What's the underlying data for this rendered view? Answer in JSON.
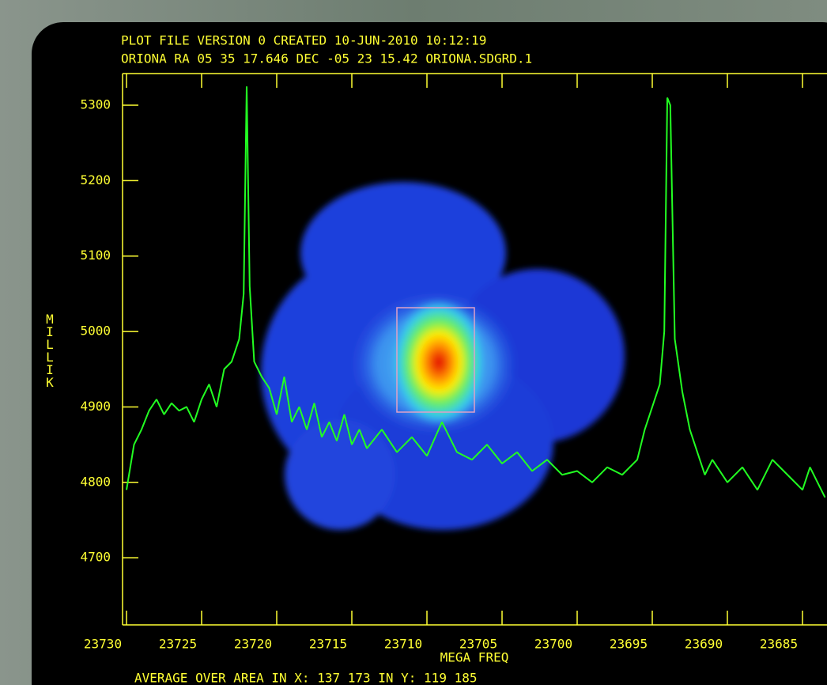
{
  "chart_data": {
    "type": "line",
    "title": "PLOT FILE VERSION 0  CREATED 10-JUN-2010 10:12:19",
    "subtitle": "ORIONA  RA 05 35 17.646  DEC -05 23 15.42  ORIONA.SDGRD.1",
    "xlabel": "MEGA FREQ",
    "ylabel": "MILLIK",
    "annotation": "AVERAGE OVER AREA IN X:  137  173   IN Y:  119  185",
    "x": [
      23730,
      23729.5,
      23729,
      23728.5,
      23728,
      23727.5,
      23727,
      23726.5,
      23726,
      23725.5,
      23725,
      23724.5,
      23724,
      23723.5,
      23723,
      23722.5,
      23722.2,
      23722,
      23721.8,
      23721.5,
      23721,
      23720.5,
      23720,
      23719.5,
      23719,
      23718.5,
      23718,
      23717.5,
      23717,
      23716.5,
      23716,
      23715.5,
      23715,
      23714.5,
      23714,
      23713,
      23712,
      23711,
      23710,
      23709,
      23708,
      23707,
      23706,
      23705,
      23704,
      23703,
      23702,
      23701,
      23700,
      23699,
      23698,
      23697,
      23696,
      23695.5,
      23695,
      23694.5,
      23694.2,
      23694,
      23693.8,
      23693.5,
      23693,
      23692.5,
      23692,
      23691.5,
      23691,
      23690,
      23689,
      23688,
      23687,
      23686,
      23685,
      23684.5,
      23684,
      23683.5
    ],
    "series": [
      {
        "color": "#22ff22",
        "values": [
          4790,
          4850,
          4870,
          4895,
          4910,
          4890,
          4905,
          4895,
          4900,
          4880,
          4910,
          4930,
          4900,
          4950,
          4960,
          4990,
          5050,
          5325,
          5060,
          4960,
          4940,
          4925,
          4890,
          4940,
          4880,
          4900,
          4870,
          4905,
          4860,
          4880,
          4855,
          4890,
          4850,
          4870,
          4845,
          4870,
          4840,
          4860,
          4835,
          4880,
          4840,
          4830,
          4850,
          4825,
          4840,
          4815,
          4830,
          4810,
          4815,
          4800,
          4820,
          4810,
          4830,
          4870,
          4900,
          4930,
          5000,
          5310,
          5300,
          4990,
          4920,
          4870,
          4840,
          4810,
          4830,
          4800,
          4820,
          4790,
          4830,
          4810,
          4790,
          4820,
          4800,
          4780
        ]
      }
    ],
    "xlim": [
      23730,
      23683.4
    ],
    "xticks": [
      23730,
      23725,
      23720,
      23715,
      23710,
      23705,
      23700,
      23695,
      23690,
      23685
    ],
    "ylim": [
      4611,
      5342
    ],
    "yticks": [
      4700,
      4800,
      4900,
      5000,
      5100,
      5200,
      5300
    ],
    "axis_color": "#ffff33"
  }
}
